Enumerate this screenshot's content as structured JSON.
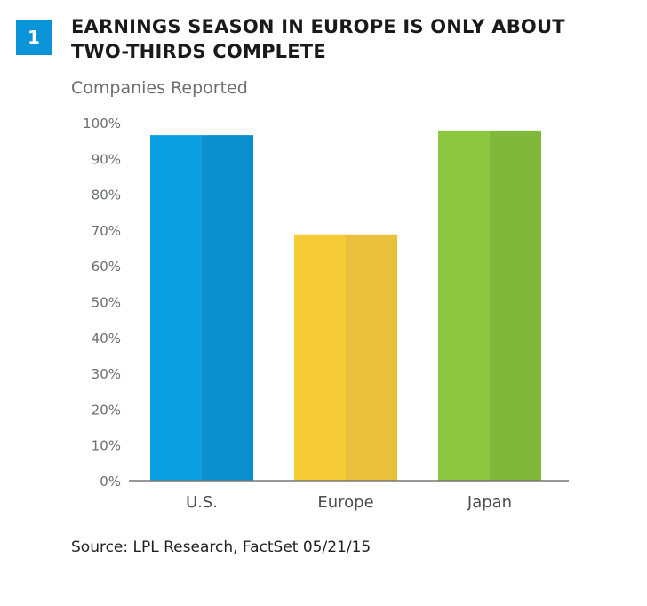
{
  "figure_number": "1",
  "colors": {
    "badge": "#0a93d7",
    "axis": "#777777",
    "tick_text": "#6d6e71",
    "category_text": "#4d4d4f"
  },
  "source": "Source: LPL Research, FactSet  05/21/15",
  "chart_data": {
    "type": "bar",
    "title": "EARNINGS SEASON IN EUROPE IS ONLY ABOUT TWO-THIRDS COMPLETE",
    "subtitle": "Companies Reported",
    "xlabel": "",
    "ylabel": "",
    "categories": [
      "U.S.",
      "Europe",
      "Japan"
    ],
    "values": [
      96.5,
      68.8,
      97.8
    ],
    "value_unit": "%",
    "ylim": [
      0,
      100
    ],
    "yticks": [
      0,
      10,
      20,
      30,
      40,
      50,
      60,
      70,
      80,
      90,
      100
    ],
    "ytick_labels": [
      "0%",
      "10%",
      "20%",
      "30%",
      "40%",
      "50%",
      "60%",
      "70%",
      "80%",
      "90%",
      "100%"
    ],
    "bar_colors": [
      {
        "light": "#0ba0e2",
        "dark": "#0a90cf"
      },
      {
        "light": "#f5cc36",
        "dark": "#e8c03c"
      },
      {
        "light": "#8cc63f",
        "dark": "#80b93a"
      }
    ],
    "grid": false,
    "legend": "none"
  }
}
